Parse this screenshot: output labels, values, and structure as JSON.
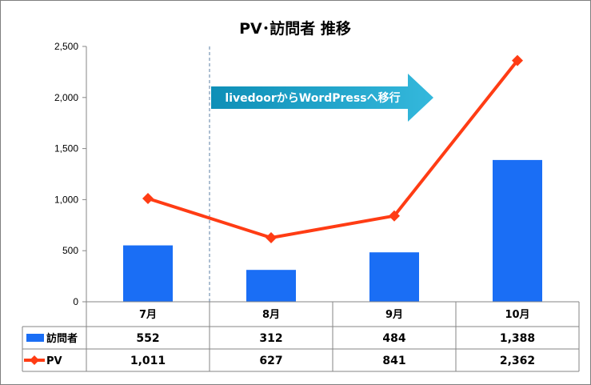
{
  "colors": {
    "bar": "#1a6ef5",
    "line": "#ff3c14",
    "arrow_from": "#0e8fb7",
    "arrow_to": "#34b8dc"
  },
  "chart_data": {
    "type": "bar",
    "title": "PV･訪問者 推移",
    "categories": [
      "7月",
      "8月",
      "9月",
      "10月"
    ],
    "ylim": [
      0,
      2500
    ],
    "yticks": [
      "0",
      "500",
      "1,000",
      "1,500",
      "2,000",
      "2,500"
    ],
    "ytick_values": [
      0,
      500,
      1000,
      1500,
      2000,
      2500
    ],
    "series": [
      {
        "name": "訪問者",
        "kind": "bar",
        "values": [
          552,
          312,
          484,
          1388
        ],
        "labels": [
          "552",
          "312",
          "484",
          "1,388"
        ]
      },
      {
        "name": "PV",
        "kind": "line",
        "marker": "diamond",
        "values": [
          1011,
          627,
          841,
          2362
        ],
        "labels": [
          "1,011",
          "627",
          "841",
          "2,362"
        ]
      }
    ],
    "annotation": {
      "text": "livedoorからWordPressへ移行",
      "from_category": "8月",
      "divider_before": "8月"
    },
    "data_table": true,
    "grid": false
  }
}
